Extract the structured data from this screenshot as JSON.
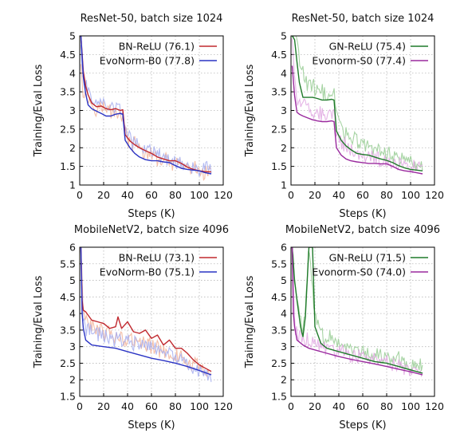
{
  "chart_data": [
    {
      "type": "line",
      "title": "ResNet-50, batch size 1024",
      "xlabel": "Steps (K)",
      "ylabel": "Training/Eval Loss",
      "xlim": [
        0,
        120
      ],
      "ylim": [
        1,
        5
      ],
      "xticks": [
        "0",
        "20",
        "40",
        "60",
        "80",
        "100",
        "120"
      ],
      "yticks": [
        "1",
        "1.5",
        "2",
        "2.5",
        "3",
        "3.5",
        "4",
        "4.5",
        "5"
      ],
      "grid": true,
      "legend_position": "top-right",
      "series": [
        {
          "name": "BN-ReLU (76.1)",
          "color": "#c0282e",
          "train_color": "#f2b49a",
          "eval": {
            "x": [
              1,
              3,
              5,
              7,
              10,
              14,
              18,
              22,
              26,
              30,
              34,
              36,
              38,
              42,
              46,
              50,
              55,
              60,
              65,
              70,
              75,
              80,
              85,
              90,
              95,
              100,
              105,
              110
            ],
            "y": [
              5.0,
              4.05,
              3.65,
              3.42,
              3.2,
              3.1,
              3.12,
              3.05,
              3.02,
              3.05,
              3.0,
              3.02,
              2.35,
              2.18,
              2.08,
              2.0,
              1.92,
              1.85,
              1.75,
              1.7,
              1.65,
              1.65,
              1.58,
              1.48,
              1.42,
              1.38,
              1.36,
              1.35
            ]
          },
          "train": {
            "x": [
              1,
              3,
              5,
              7,
              10,
              14,
              18,
              22,
              26,
              30,
              34,
              36,
              38,
              42,
              46,
              50,
              55,
              60,
              65,
              70,
              75,
              80,
              85,
              90,
              95,
              100,
              105,
              110
            ],
            "y": [
              4.4,
              3.5,
              3.4,
              3.3,
              3.2,
              3.1,
              3.1,
              3.0,
              3.0,
              2.95,
              2.9,
              2.9,
              2.4,
              2.15,
              2.05,
              2.0,
              1.85,
              1.78,
              1.7,
              1.65,
              1.6,
              1.55,
              1.5,
              1.45,
              1.4,
              1.37,
              1.35,
              1.33
            ]
          }
        },
        {
          "name": "EvoNorm-B0 (77.8)",
          "color": "#2a33c4",
          "train_color": "#a6aef0",
          "eval": {
            "x": [
              1,
              3,
              5,
              7,
              10,
              14,
              18,
              22,
              26,
              30,
              34,
              36,
              38,
              42,
              46,
              50,
              55,
              60,
              65,
              70,
              75,
              80,
              85,
              90,
              95,
              100,
              105,
              110
            ],
            "y": [
              5.0,
              3.9,
              3.45,
              3.15,
              3.05,
              2.98,
              2.92,
              2.85,
              2.85,
              2.9,
              2.92,
              2.9,
              2.2,
              2.0,
              1.85,
              1.75,
              1.68,
              1.65,
              1.65,
              1.62,
              1.6,
              1.52,
              1.45,
              1.42,
              1.4,
              1.38,
              1.33,
              1.3
            ]
          },
          "train": {
            "x": [
              1,
              3,
              5,
              7,
              10,
              14,
              18,
              22,
              26,
              30,
              34,
              36,
              38,
              42,
              46,
              50,
              55,
              60,
              65,
              70,
              75,
              80,
              85,
              90,
              95,
              100,
              105,
              110
            ],
            "y": [
              4.8,
              3.8,
              3.6,
              3.45,
              3.35,
              3.25,
              3.2,
              3.15,
              3.1,
              3.05,
              3.0,
              3.0,
              2.5,
              2.25,
              2.15,
              2.05,
              1.95,
              1.85,
              1.8,
              1.75,
              1.7,
              1.62,
              1.58,
              1.52,
              1.48,
              1.45,
              1.42,
              1.4
            ]
          }
        }
      ]
    },
    {
      "type": "line",
      "title": "ResNet-50, batch size 1024",
      "xlabel": "Steps (K)",
      "ylabel": "Training/Eval Loss",
      "xlim": [
        0,
        120
      ],
      "ylim": [
        1,
        5
      ],
      "xticks": [
        "0",
        "20",
        "40",
        "60",
        "80",
        "100",
        "120"
      ],
      "yticks": [
        "1",
        "1.5",
        "2",
        "2.5",
        "3",
        "3.5",
        "4",
        "4.5",
        "5"
      ],
      "grid": true,
      "legend_position": "top-right",
      "series": [
        {
          "name": "GN-ReLU (75.4)",
          "color": "#1f7a2a",
          "train_color": "#98cc94",
          "eval": {
            "x": [
              1,
              3,
              5,
              7,
              10,
              14,
              18,
              22,
              26,
              30,
              34,
              36,
              38,
              42,
              46,
              50,
              55,
              60,
              65,
              70,
              75,
              80,
              85,
              90,
              95,
              100,
              105,
              110
            ],
            "y": [
              5.0,
              4.9,
              4.3,
              3.75,
              3.35,
              3.35,
              3.35,
              3.32,
              3.28,
              3.28,
              3.3,
              3.28,
              2.45,
              2.2,
              2.05,
              1.95,
              1.85,
              1.82,
              1.8,
              1.75,
              1.7,
              1.66,
              1.6,
              1.52,
              1.46,
              1.42,
              1.4,
              1.38
            ]
          },
          "train": {
            "x": [
              1,
              3,
              5,
              7,
              10,
              14,
              18,
              22,
              26,
              30,
              34,
              36,
              38,
              42,
              46,
              50,
              55,
              60,
              65,
              70,
              75,
              80,
              85,
              90,
              95,
              100,
              105,
              110
            ],
            "y": [
              5.0,
              5.0,
              4.8,
              4.4,
              4.0,
              3.7,
              3.6,
              3.55,
              3.5,
              3.45,
              3.45,
              3.4,
              2.9,
              2.55,
              2.4,
              2.3,
              2.2,
              2.1,
              2.0,
              1.95,
              1.9,
              1.85,
              1.8,
              1.75,
              1.7,
              1.65,
              1.62,
              1.6
            ]
          }
        },
        {
          "name": "Evonorm-S0 (77.4)",
          "color": "#9a2a9e",
          "train_color": "#e0a8e2",
          "eval": {
            "x": [
              1,
              3,
              5,
              7,
              10,
              14,
              18,
              22,
              26,
              30,
              34,
              36,
              38,
              42,
              46,
              50,
              55,
              60,
              65,
              70,
              75,
              80,
              85,
              90,
              95,
              100,
              105,
              110
            ],
            "y": [
              4.2,
              3.4,
              2.95,
              2.9,
              2.85,
              2.8,
              2.75,
              2.72,
              2.7,
              2.7,
              2.72,
              2.7,
              2.0,
              1.8,
              1.7,
              1.65,
              1.62,
              1.6,
              1.58,
              1.58,
              1.57,
              1.57,
              1.5,
              1.42,
              1.38,
              1.36,
              1.33,
              1.3
            ]
          },
          "train": {
            "x": [
              1,
              3,
              5,
              7,
              10,
              14,
              18,
              22,
              26,
              30,
              34,
              36,
              38,
              42,
              46,
              50,
              55,
              60,
              65,
              70,
              75,
              80,
              85,
              90,
              95,
              100,
              105,
              110
            ],
            "y": [
              5.0,
              3.9,
              3.4,
              3.2,
              3.1,
              3.05,
              3.0,
              2.95,
              2.95,
              2.9,
              2.9,
              2.85,
              2.35,
              2.15,
              2.05,
              1.95,
              1.85,
              1.8,
              1.75,
              1.7,
              1.68,
              1.62,
              1.58,
              1.55,
              1.5,
              1.47,
              1.45,
              1.42
            ]
          }
        }
      ]
    },
    {
      "type": "line",
      "title": "MobileNetV2, batch size 4096",
      "xlabel": "Steps (K)",
      "ylabel": "Training/Eval Loss",
      "xlim": [
        0,
        120
      ],
      "ylim": [
        1.5,
        6
      ],
      "xticks": [
        "0",
        "20",
        "40",
        "60",
        "80",
        "100",
        "120"
      ],
      "yticks": [
        "1.5",
        "2",
        "2.5",
        "3",
        "3.5",
        "4",
        "4.5",
        "5",
        "5.5",
        "6"
      ],
      "grid": true,
      "legend_position": "top-right",
      "series": [
        {
          "name": "BN-ReLU (73.1)",
          "color": "#c0282e",
          "train_color": "#f2b49a",
          "eval": {
            "x": [
              1,
              2,
              3,
              5,
              10,
              15,
              20,
              25,
              30,
              32,
              35,
              40,
              45,
              50,
              55,
              60,
              65,
              70,
              75,
              80,
              85,
              90,
              95,
              100,
              105,
              110
            ],
            "y": [
              6.0,
              4.4,
              4.1,
              4.05,
              3.8,
              3.75,
              3.7,
              3.55,
              3.6,
              3.9,
              3.55,
              3.75,
              3.45,
              3.4,
              3.5,
              3.25,
              3.35,
              3.05,
              3.2,
              2.95,
              2.95,
              2.8,
              2.6,
              2.45,
              2.35,
              2.25
            ]
          },
          "train": {
            "x": [
              1,
              3,
              5,
              10,
              15,
              20,
              25,
              30,
              35,
              40,
              45,
              50,
              55,
              60,
              65,
              70,
              75,
              80,
              85,
              90,
              95,
              100,
              105,
              110
            ],
            "y": [
              6.0,
              4.0,
              3.75,
              3.6,
              3.5,
              3.45,
              3.4,
              3.35,
              3.3,
              3.25,
              3.2,
              3.15,
              3.05,
              3.0,
              2.95,
              2.9,
              2.8,
              2.75,
              2.65,
              2.55,
              2.45,
              2.35,
              2.28,
              2.2
            ]
          }
        },
        {
          "name": "EvoNorm-B0 (75.1)",
          "color": "#2a33c4",
          "train_color": "#a6aef0",
          "eval": {
            "x": [
              1,
              2,
              3,
              5,
              10,
              20,
              30,
              40,
              50,
              60,
              70,
              80,
              90,
              100,
              110
            ],
            "y": [
              6.0,
              4.0,
              3.55,
              3.2,
              3.05,
              3.0,
              2.95,
              2.85,
              2.75,
              2.65,
              2.58,
              2.5,
              2.4,
              2.28,
              2.15
            ]
          },
          "train": {
            "x": [
              1,
              3,
              5,
              10,
              15,
              20,
              25,
              30,
              35,
              40,
              45,
              50,
              55,
              60,
              65,
              70,
              75,
              80,
              85,
              90,
              95,
              100,
              105,
              110
            ],
            "y": [
              6.0,
              3.7,
              3.5,
              3.4,
              3.35,
              3.3,
              3.25,
              3.2,
              3.2,
              3.15,
              3.1,
              3.05,
              3.0,
              2.95,
              2.9,
              2.85,
              2.75,
              2.7,
              2.6,
              2.5,
              2.4,
              2.3,
              2.22,
              2.15
            ]
          }
        }
      ]
    },
    {
      "type": "line",
      "title": "MobileNetV2, batch size 4096",
      "xlabel": "Steps (K)",
      "ylabel": "Training/Eval Loss",
      "xlim": [
        0,
        120
      ],
      "ylim": [
        1.5,
        6
      ],
      "xticks": [
        "0",
        "20",
        "40",
        "60",
        "80",
        "100",
        "120"
      ],
      "yticks": [
        "1.5",
        "2",
        "2.5",
        "3",
        "3.5",
        "4",
        "4.5",
        "5",
        "5.5",
        "6"
      ],
      "grid": true,
      "legend_position": "top-right",
      "series": [
        {
          "name": "GN-ReLU (71.5)",
          "color": "#1f7a2a",
          "train_color": "#98cc94",
          "eval": {
            "x": [
              1,
              3,
              5,
              8,
              10,
              12,
              15,
              18,
              20,
              25,
              30,
              40,
              50,
              60,
              70,
              80,
              90,
              100,
              110
            ],
            "y": [
              6.0,
              5.0,
              4.4,
              3.6,
              3.3,
              3.9,
              6.0,
              6.0,
              3.6,
              3.1,
              2.95,
              2.85,
              2.75,
              2.65,
              2.55,
              2.5,
              2.4,
              2.3,
              2.2
            ]
          },
          "train": {
            "x": [
              1,
              3,
              5,
              8,
              10,
              12,
              15,
              18,
              20,
              25,
              30,
              35,
              40,
              45,
              50,
              55,
              60,
              65,
              70,
              75,
              80,
              85,
              90,
              95,
              100,
              105,
              110
            ],
            "y": [
              6.0,
              5.0,
              4.6,
              3.9,
              3.4,
              4.1,
              6.0,
              4.8,
              3.8,
              3.4,
              3.3,
              3.2,
              3.15,
              3.1,
              3.0,
              2.95,
              2.9,
              2.85,
              2.8,
              2.75,
              2.7,
              2.65,
              2.6,
              2.55,
              2.5,
              2.45,
              2.4
            ]
          }
        },
        {
          "name": "Evonorm-S0 (74.0)",
          "color": "#9a2a9e",
          "train_color": "#e0a8e2",
          "eval": {
            "x": [
              1,
              2,
              3,
              5,
              10,
              15,
              20,
              30,
              40,
              50,
              60,
              70,
              80,
              90,
              100,
              110
            ],
            "y": [
              6.0,
              4.0,
              3.6,
              3.2,
              3.05,
              2.95,
              2.9,
              2.8,
              2.7,
              2.62,
              2.55,
              2.48,
              2.4,
              2.32,
              2.24,
              2.15
            ]
          },
          "train": {
            "x": [
              1,
              3,
              5,
              10,
              15,
              20,
              25,
              30,
              35,
              40,
              45,
              50,
              55,
              60,
              65,
              70,
              75,
              80,
              85,
              90,
              95,
              100,
              105,
              110
            ],
            "y": [
              6.0,
              3.6,
              3.4,
              3.25,
              3.15,
              3.1,
              3.05,
              3.0,
              2.95,
              2.9,
              2.85,
              2.8,
              2.75,
              2.7,
              2.65,
              2.6,
              2.55,
              2.5,
              2.45,
              2.4,
              2.35,
              2.3,
              2.25,
              2.2
            ]
          }
        }
      ]
    }
  ]
}
